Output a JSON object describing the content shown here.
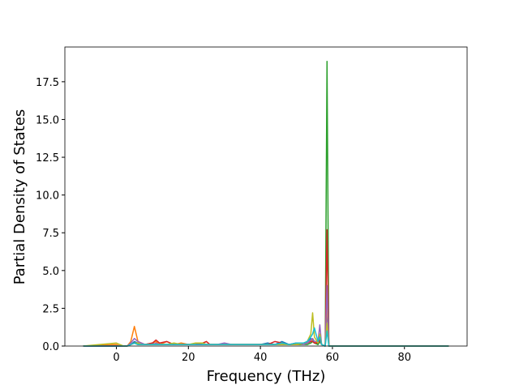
{
  "chart_data": {
    "type": "line",
    "xlabel": "Frequency (THz)",
    "ylabel": "Partial Density of States",
    "x": [
      -9.2,
      0,
      1,
      2,
      3,
      4,
      5,
      6,
      7,
      8,
      10,
      11,
      12,
      14,
      16,
      18,
      20,
      22,
      24,
      25,
      26,
      28,
      30,
      32,
      34,
      36,
      38,
      40,
      42,
      44,
      46,
      48,
      50,
      52,
      53,
      54,
      54.5,
      55,
      56,
      56.5,
      57,
      58,
      58.5,
      59,
      60,
      92.3
    ],
    "series": [
      {
        "color": "#1f77b4",
        "values": [
          0,
          0,
          0,
          0,
          0,
          0.1,
          0.3,
          0.2,
          0.1,
          0.1,
          0.2,
          0.1,
          0.1,
          0.1,
          0.1,
          0.1,
          0.1,
          0.1,
          0.2,
          0.1,
          0.1,
          0.1,
          0.1,
          0.1,
          0.1,
          0.1,
          0.1,
          0.1,
          0.2,
          0.1,
          0.3,
          0.1,
          0.2,
          0.2,
          0.3,
          0.5,
          0.4,
          0.3,
          0.1,
          0.3,
          0.1,
          0,
          2.5,
          0,
          0,
          0
        ]
      },
      {
        "color": "#ff7f0e",
        "values": [
          0,
          0.1,
          0,
          0,
          0,
          0.3,
          1.3,
          0.3,
          0.2,
          0.1,
          0.2,
          0.3,
          0.1,
          0.3,
          0.1,
          0.2,
          0.1,
          0.1,
          0.2,
          0.3,
          0.1,
          0.1,
          0.1,
          0.1,
          0.1,
          0.1,
          0.1,
          0.1,
          0.1,
          0.1,
          0.1,
          0.1,
          0.2,
          0.2,
          0.2,
          0.3,
          0.5,
          0.3,
          0.2,
          0.5,
          0.1,
          0,
          3,
          0,
          0,
          0
        ]
      },
      {
        "color": "#2ca02c",
        "values": [
          0,
          0,
          0,
          0,
          0,
          0.1,
          0.2,
          0.1,
          0.1,
          0.1,
          0.1,
          0.1,
          0.1,
          0.1,
          0.1,
          0.1,
          0.1,
          0.1,
          0.1,
          0.1,
          0.1,
          0.1,
          0.1,
          0.1,
          0.1,
          0.1,
          0.1,
          0.1,
          0.1,
          0.1,
          0.1,
          0.1,
          0.1,
          0.1,
          0.1,
          0.2,
          0.3,
          0.2,
          0.1,
          0.3,
          0.1,
          0,
          18.85,
          0,
          0,
          0
        ]
      },
      {
        "color": "#d62728",
        "values": [
          0,
          0,
          0,
          0,
          0,
          0.1,
          0.2,
          0.2,
          0.1,
          0.1,
          0.2,
          0.4,
          0.2,
          0.3,
          0.1,
          0.1,
          0.1,
          0.1,
          0.2,
          0.3,
          0.1,
          0.1,
          0.1,
          0.1,
          0.1,
          0.1,
          0.1,
          0.1,
          0.1,
          0.3,
          0.2,
          0.1,
          0.1,
          0.2,
          0.2,
          0.3,
          0.3,
          0.2,
          0.2,
          0.4,
          0.1,
          0,
          7.7,
          0,
          0,
          0
        ]
      },
      {
        "color": "#9467bd",
        "values": [
          0,
          0,
          0,
          0,
          0,
          0.2,
          0.5,
          0.3,
          0.2,
          0.1,
          0.1,
          0.2,
          0.1,
          0.1,
          0.1,
          0.1,
          0.1,
          0.1,
          0.1,
          0.1,
          0.1,
          0.1,
          0.2,
          0.1,
          0.1,
          0.1,
          0.1,
          0.1,
          0.1,
          0.1,
          0.1,
          0.1,
          0.2,
          0.1,
          0.2,
          0.4,
          0.5,
          0.3,
          0.3,
          1.4,
          0.1,
          0,
          4,
          0,
          0,
          0
        ]
      },
      {
        "color": "#bcbd22",
        "values": [
          0,
          0.2,
          0.1,
          0,
          0,
          0.1,
          0.2,
          0.2,
          0.1,
          0.1,
          0.1,
          0.1,
          0.1,
          0.1,
          0.2,
          0.1,
          0.1,
          0.2,
          0.2,
          0.1,
          0.1,
          0.1,
          0.1,
          0.1,
          0.1,
          0.1,
          0.1,
          0.1,
          0.1,
          0.1,
          0.1,
          0.1,
          0.1,
          0.2,
          0.3,
          0.8,
          2.2,
          0.6,
          0.2,
          0.8,
          0.1,
          0,
          1.5,
          0,
          0,
          0
        ]
      },
      {
        "color": "#17becf",
        "values": [
          0,
          0,
          0,
          0,
          0,
          0.1,
          0.2,
          0.1,
          0.1,
          0.1,
          0.1,
          0.1,
          0.1,
          0.1,
          0.1,
          0.1,
          0.1,
          0.1,
          0.1,
          0.1,
          0.1,
          0.1,
          0.1,
          0.1,
          0.1,
          0.1,
          0.1,
          0.1,
          0.1,
          0.1,
          0.2,
          0.1,
          0.2,
          0.2,
          0.3,
          0.6,
          0.8,
          1.2,
          0.3,
          0.6,
          0.1,
          0,
          1,
          0,
          0,
          0
        ]
      }
    ],
    "xlim": [
      -14.3,
      97.4
    ],
    "ylim": [
      0,
      19.8
    ],
    "xticks": [
      0,
      20,
      40,
      60,
      80
    ],
    "yticks": [
      {
        "value": 0,
        "label": "0.0"
      },
      {
        "value": 2.5,
        "label": "2.5"
      },
      {
        "value": 5,
        "label": "5.0"
      },
      {
        "value": 7.5,
        "label": "7.5"
      },
      {
        "value": 10,
        "label": "10.0"
      },
      {
        "value": 12.5,
        "label": "12.5"
      },
      {
        "value": 15,
        "label": "15.0"
      },
      {
        "value": 17.5,
        "label": "17.5"
      }
    ],
    "grid": false
  }
}
